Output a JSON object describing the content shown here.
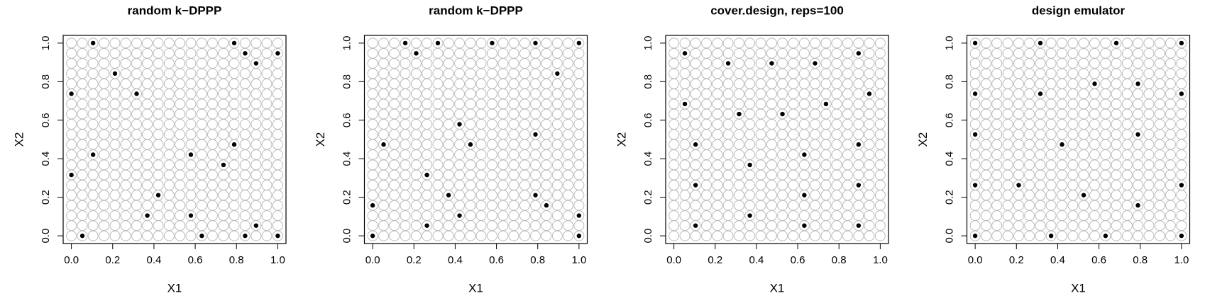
{
  "chart_data": [
    {
      "type": "scatter",
      "title": "random k−DPPP",
      "xlabel": "X1",
      "ylabel": "X2",
      "xlim": [
        -0.04,
        1.04
      ],
      "ylim": [
        -0.04,
        1.04
      ],
      "xticks": [
        {
          "value": 0,
          "label": "0.0"
        },
        {
          "value": 0.2,
          "label": "0.2"
        },
        {
          "value": 0.4,
          "label": "0.4"
        },
        {
          "value": 0.6,
          "label": "0.6"
        },
        {
          "value": 0.8,
          "label": "0.8"
        },
        {
          "value": 1,
          "label": "1.0"
        }
      ],
      "yticks": [
        {
          "value": 0,
          "label": "0.0"
        },
        {
          "value": 0.2,
          "label": "0.2"
        },
        {
          "value": 0.4,
          "label": "0.4"
        },
        {
          "value": 0.6,
          "label": "0.6"
        },
        {
          "value": 0.8,
          "label": "0.8"
        },
        {
          "value": 1,
          "label": "1.0"
        }
      ],
      "candidates": {
        "levels": [
          0,
          0.053,
          0.105,
          0.158,
          0.211,
          0.263,
          0.316,
          0.368,
          0.421,
          0.474,
          0.526,
          0.579,
          0.632,
          0.684,
          0.737,
          0.789,
          0.842,
          0.895,
          0.947,
          1
        ],
        "color": "#bbbbbb"
      },
      "points": {
        "color": "#000000",
        "x": [
          0.105,
          0.789,
          0.842,
          1,
          0.895,
          0.211,
          0,
          0.316,
          0.789,
          0.105,
          0.579,
          0.737,
          0,
          0.421,
          0.368,
          0.579,
          0.895,
          0.053,
          0.632,
          0.842,
          1
        ],
        "y": [
          1,
          1,
          0.947,
          0.947,
          0.895,
          0.842,
          0.737,
          0.737,
          0.474,
          0.421,
          0.421,
          0.368,
          0.316,
          0.211,
          0.105,
          0.105,
          0.053,
          0,
          0,
          0,
          0
        ]
      }
    },
    {
      "type": "scatter",
      "title": "random k−DPPP",
      "xlabel": "X1",
      "ylabel": "X2",
      "xlim": [
        -0.04,
        1.04
      ],
      "ylim": [
        -0.04,
        1.04
      ],
      "xticks": [
        {
          "value": 0,
          "label": "0.0"
        },
        {
          "value": 0.2,
          "label": "0.2"
        },
        {
          "value": 0.4,
          "label": "0.4"
        },
        {
          "value": 0.6,
          "label": "0.6"
        },
        {
          "value": 0.8,
          "label": "0.8"
        },
        {
          "value": 1,
          "label": "1.0"
        }
      ],
      "yticks": [
        {
          "value": 0,
          "label": "0.0"
        },
        {
          "value": 0.2,
          "label": "0.2"
        },
        {
          "value": 0.4,
          "label": "0.4"
        },
        {
          "value": 0.6,
          "label": "0.6"
        },
        {
          "value": 0.8,
          "label": "0.8"
        },
        {
          "value": 1,
          "label": "1.0"
        }
      ],
      "candidates": {
        "levels": [
          0,
          0.053,
          0.105,
          0.158,
          0.211,
          0.263,
          0.316,
          0.368,
          0.421,
          0.474,
          0.526,
          0.579,
          0.632,
          0.684,
          0.737,
          0.789,
          0.842,
          0.895,
          0.947,
          1
        ],
        "color": "#bbbbbb"
      },
      "points": {
        "color": "#000000",
        "x": [
          0.158,
          0.316,
          0.579,
          0.789,
          1,
          0.211,
          0.895,
          0.421,
          0.053,
          0.474,
          0.789,
          0.263,
          0.368,
          0.789,
          0,
          0.842,
          0.421,
          1,
          0.263,
          0,
          1
        ],
        "y": [
          1,
          1,
          1,
          1,
          1,
          0.947,
          0.842,
          0.579,
          0.474,
          0.474,
          0.526,
          0.316,
          0.211,
          0.211,
          0.158,
          0.158,
          0.105,
          0.105,
          0.053,
          0,
          0
        ]
      }
    },
    {
      "type": "scatter",
      "title": "cover.design, reps=100",
      "xlabel": "X1",
      "ylabel": "X2",
      "xlim": [
        -0.04,
        1.04
      ],
      "ylim": [
        -0.04,
        1.04
      ],
      "xticks": [
        {
          "value": 0,
          "label": "0.0"
        },
        {
          "value": 0.2,
          "label": "0.2"
        },
        {
          "value": 0.4,
          "label": "0.4"
        },
        {
          "value": 0.6,
          "label": "0.6"
        },
        {
          "value": 0.8,
          "label": "0.8"
        },
        {
          "value": 1,
          "label": "1.0"
        }
      ],
      "yticks": [
        {
          "value": 0,
          "label": "0.0"
        },
        {
          "value": 0.2,
          "label": "0.2"
        },
        {
          "value": 0.4,
          "label": "0.4"
        },
        {
          "value": 0.6,
          "label": "0.6"
        },
        {
          "value": 0.8,
          "label": "0.8"
        },
        {
          "value": 1,
          "label": "1.0"
        }
      ],
      "candidates": {
        "levels": [
          0,
          0.053,
          0.105,
          0.158,
          0.211,
          0.263,
          0.316,
          0.368,
          0.421,
          0.474,
          0.526,
          0.579,
          0.632,
          0.684,
          0.737,
          0.789,
          0.842,
          0.895,
          0.947,
          1
        ],
        "color": "#bbbbbb"
      },
      "points": {
        "color": "#000000",
        "x": [
          0.053,
          0.263,
          0.474,
          0.684,
          0.895,
          0.053,
          0.947,
          0.737,
          0.316,
          0.526,
          0.105,
          0.895,
          0.632,
          0.368,
          0.105,
          0.895,
          0.632,
          0.368,
          0.105,
          0.632,
          0.895
        ],
        "y": [
          0.947,
          0.895,
          0.895,
          0.895,
          0.947,
          0.684,
          0.737,
          0.684,
          0.632,
          0.632,
          0.474,
          0.474,
          0.421,
          0.368,
          0.263,
          0.263,
          0.211,
          0.105,
          0.053,
          0.053,
          0.053
        ]
      }
    },
    {
      "type": "scatter",
      "title": "design emulator",
      "xlabel": "X1",
      "ylabel": "X2",
      "xlim": [
        -0.04,
        1.04
      ],
      "ylim": [
        -0.04,
        1.04
      ],
      "xticks": [
        {
          "value": 0,
          "label": "0.0"
        },
        {
          "value": 0.2,
          "label": "0.2"
        },
        {
          "value": 0.4,
          "label": "0.4"
        },
        {
          "value": 0.6,
          "label": "0.6"
        },
        {
          "value": 0.8,
          "label": "0.8"
        },
        {
          "value": 1,
          "label": "1.0"
        }
      ],
      "yticks": [
        {
          "value": 0,
          "label": "0.0"
        },
        {
          "value": 0.2,
          "label": "0.2"
        },
        {
          "value": 0.4,
          "label": "0.4"
        },
        {
          "value": 0.6,
          "label": "0.6"
        },
        {
          "value": 0.8,
          "label": "0.8"
        },
        {
          "value": 1,
          "label": "1.0"
        }
      ],
      "candidates": {
        "levels": [
          0,
          0.053,
          0.105,
          0.158,
          0.211,
          0.263,
          0.316,
          0.368,
          0.421,
          0.474,
          0.526,
          0.579,
          0.632,
          0.684,
          0.737,
          0.789,
          0.842,
          0.895,
          0.947,
          1
        ],
        "color": "#bbbbbb"
      },
      "points": {
        "color": "#000000",
        "x": [
          0,
          0.316,
          0.684,
          1,
          0.579,
          0.789,
          0,
          0.316,
          1,
          0.421,
          0,
          0.789,
          0,
          0.211,
          0.526,
          1,
          0.789,
          0.368,
          0.632,
          0,
          1
        ],
        "y": [
          1,
          1,
          1,
          1,
          0.789,
          0.789,
          0.737,
          0.737,
          0.737,
          0.474,
          0.526,
          0.526,
          0.263,
          0.263,
          0.211,
          0.263,
          0.158,
          0,
          0,
          0,
          0
        ]
      }
    }
  ]
}
